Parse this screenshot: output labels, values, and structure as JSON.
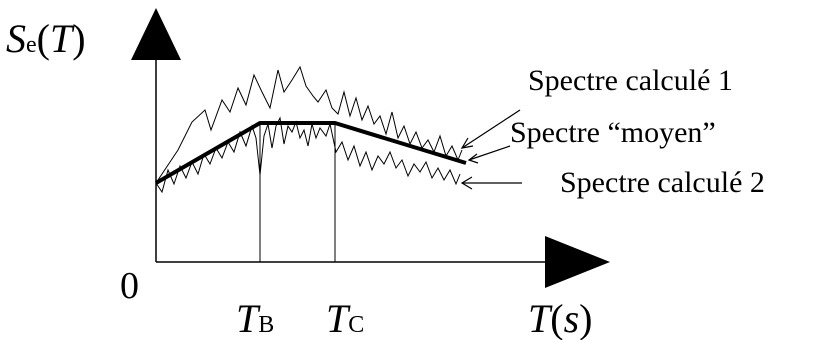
{
  "diagram": {
    "y_axis_label": {
      "symbol": "S",
      "subscript": "e",
      "open_paren": "(",
      "variable": "T",
      "close_paren": ")"
    },
    "x_axis_label": {
      "variable": "T",
      "open_paren": "(",
      "unit": "s",
      "close_paren": ")"
    },
    "origin_label": "0",
    "tick_labels": [
      {
        "symbol": "T",
        "subscript": "B"
      },
      {
        "symbol": "T",
        "subscript": "C"
      }
    ],
    "legend": [
      {
        "label": "Spectre calculé 1"
      },
      {
        "label": "Spectre “moyen”"
      },
      {
        "label": "Spectre calculé 2"
      }
    ]
  }
}
